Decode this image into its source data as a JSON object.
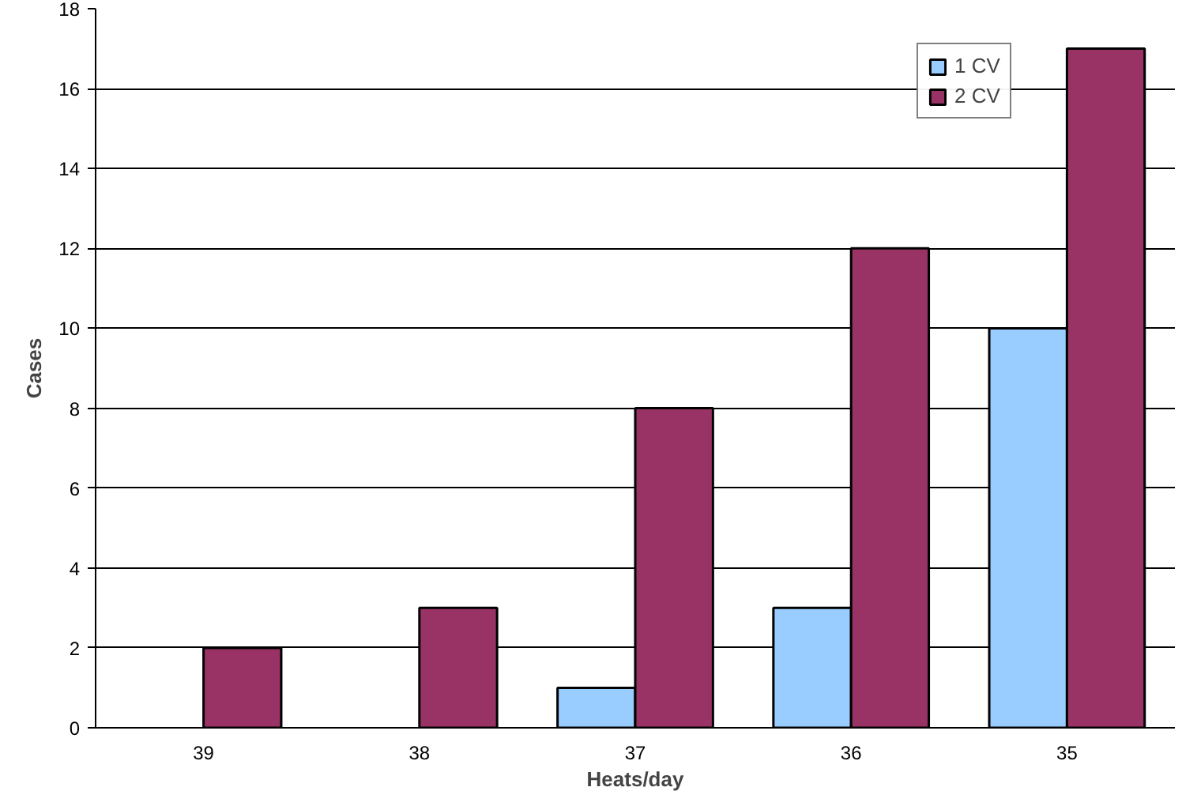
{
  "chart_data": {
    "type": "bar",
    "xlabel": "Heats/day",
    "ylabel": "Cases",
    "categories": [
      "39",
      "38",
      "37",
      "36",
      "35"
    ],
    "series": [
      {
        "name": "1 CV",
        "color": "#99ccff",
        "values": [
          null,
          null,
          1,
          3,
          10
        ]
      },
      {
        "name": "2 CV",
        "color": "#993366",
        "values": [
          2,
          3,
          8,
          12,
          17
        ]
      }
    ],
    "ylim": [
      0,
      18
    ],
    "yticks": [
      0,
      2,
      4,
      6,
      8,
      10,
      12,
      14,
      16,
      18
    ],
    "grid": "y",
    "legend": "top right"
  }
}
